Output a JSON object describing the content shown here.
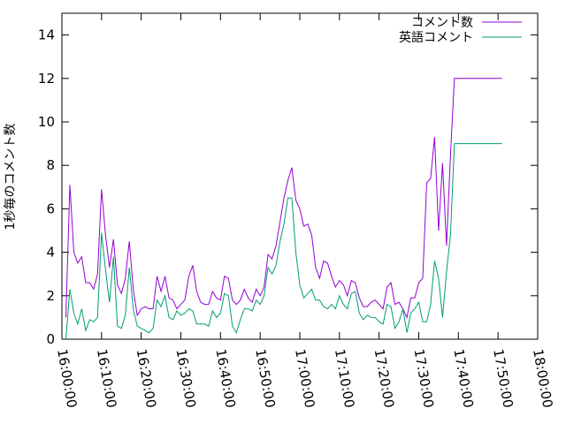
{
  "chart_data": {
    "type": "line",
    "title": "",
    "xlabel": "",
    "ylabel": "1秒毎のコメント数",
    "ylim": [
      0,
      15
    ],
    "yticks": [
      "0",
      "2",
      "4",
      "6",
      "8",
      "10",
      "12",
      "14"
    ],
    "ytick_values": [
      0,
      2,
      4,
      6,
      8,
      10,
      12,
      14
    ],
    "xlim": [
      "16:00:00",
      "18:00:00"
    ],
    "xticks": [
      "16:00:00",
      "16:10:00",
      "16:20:00",
      "16:30:00",
      "16:40:00",
      "16:50:00",
      "17:00:00",
      "17:10:00",
      "17:20:00",
      "17:30:00",
      "17:40:00",
      "17:50:00",
      "18:00:00"
    ],
    "legend_position": "top-right",
    "grid": false,
    "series": [
      {
        "name": "コメント数",
        "color": "#9400d3",
        "x": [
          "16:01:00",
          "16:02:00",
          "16:03:00",
          "16:04:00",
          "16:05:00",
          "16:06:00",
          "16:07:00",
          "16:08:00",
          "16:09:00",
          "16:10:00",
          "16:11:00",
          "16:12:00",
          "16:13:00",
          "16:14:00",
          "16:15:00",
          "16:16:00",
          "16:17:00",
          "16:18:00",
          "16:19:00",
          "16:20:00",
          "16:21:00",
          "16:22:00",
          "16:23:00",
          "16:24:00",
          "16:25:00",
          "16:26:00",
          "16:27:00",
          "16:28:00",
          "16:29:00",
          "16:30:00",
          "16:31:00",
          "16:32:00",
          "16:33:00",
          "16:34:00",
          "16:35:00",
          "16:36:00",
          "16:37:00",
          "16:38:00",
          "16:39:00",
          "16:40:00",
          "16:41:00",
          "16:42:00",
          "16:43:00",
          "16:44:00",
          "16:45:00",
          "16:46:00",
          "16:47:00",
          "16:48:00",
          "16:49:00",
          "16:50:00",
          "16:51:00",
          "16:52:00",
          "16:53:00",
          "16:54:00",
          "16:55:00",
          "16:56:00",
          "16:57:00",
          "16:58:00",
          "16:59:00",
          "17:00:00",
          "17:01:00",
          "17:02:00",
          "17:03:00",
          "17:04:00",
          "17:05:00",
          "17:06:00",
          "17:07:00",
          "17:08:00",
          "17:09:00",
          "17:10:00",
          "17:11:00",
          "17:12:00",
          "17:13:00",
          "17:14:00",
          "17:15:00",
          "17:16:00",
          "17:17:00",
          "17:18:00",
          "17:19:00",
          "17:20:00",
          "17:21:00",
          "17:22:00",
          "17:23:00",
          "17:24:00",
          "17:25:00",
          "17:26:00",
          "17:27:00",
          "17:28:00",
          "17:29:00",
          "17:30:00",
          "17:31:00",
          "17:32:00",
          "17:33:00",
          "17:34:00",
          "17:35:00",
          "17:36:00",
          "17:37:00",
          "17:38:00",
          "17:39:00",
          "17:40:00",
          "17:41:00",
          "17:42:00",
          "17:43:00",
          "17:44:00",
          "17:45:00",
          "17:46:00",
          "17:47:00",
          "17:48:00",
          "17:49:00",
          "17:50:00",
          "17:51:00"
        ],
        "values": [
          1.0,
          7.1,
          4.0,
          3.5,
          3.8,
          2.6,
          2.6,
          2.3,
          3.0,
          6.9,
          4.8,
          3.3,
          4.6,
          2.5,
          2.1,
          2.8,
          4.5,
          2.3,
          1.1,
          1.4,
          1.5,
          1.4,
          1.4,
          2.9,
          2.2,
          2.9,
          1.9,
          1.8,
          1.4,
          1.6,
          1.8,
          2.9,
          3.4,
          2.2,
          1.7,
          1.6,
          1.6,
          2.2,
          1.9,
          1.8,
          2.9,
          2.8,
          1.8,
          1.6,
          1.8,
          2.3,
          1.9,
          1.7,
          2.3,
          2.0,
          2.4,
          3.9,
          3.7,
          4.3,
          5.4,
          6.5,
          7.3,
          7.9,
          6.4,
          6.0,
          5.2,
          5.3,
          4.8,
          3.3,
          2.8,
          3.6,
          3.5,
          2.9,
          2.4,
          2.7,
          2.5,
          2.0,
          2.7,
          2.6,
          1.9,
          1.5,
          1.5,
          1.7,
          1.8,
          1.6,
          1.4,
          2.4,
          2.6,
          1.6,
          1.7,
          1.4,
          1.0,
          1.9,
          1.9,
          2.6,
          2.8,
          7.2,
          7.4,
          9.3,
          5.0,
          8.1,
          4.3,
          8.5,
          12.0,
          12.0,
          12.0,
          12.0,
          12.0,
          12.0,
          12.0,
          12.0,
          12.0,
          12.0,
          12.0,
          12.0,
          12.0
        ]
      },
      {
        "name": "英語コメント",
        "color": "#009e73",
        "x": [
          "16:01:00",
          "16:02:00",
          "16:03:00",
          "16:04:00",
          "16:05:00",
          "16:06:00",
          "16:07:00",
          "16:08:00",
          "16:09:00",
          "16:10:00",
          "16:11:00",
          "16:12:00",
          "16:13:00",
          "16:14:00",
          "16:15:00",
          "16:16:00",
          "16:17:00",
          "16:18:00",
          "16:19:00",
          "16:20:00",
          "16:21:00",
          "16:22:00",
          "16:23:00",
          "16:24:00",
          "16:25:00",
          "16:26:00",
          "16:27:00",
          "16:28:00",
          "16:29:00",
          "16:30:00",
          "16:31:00",
          "16:32:00",
          "16:33:00",
          "16:34:00",
          "16:35:00",
          "16:36:00",
          "16:37:00",
          "16:38:00",
          "16:39:00",
          "16:40:00",
          "16:41:00",
          "16:42:00",
          "16:43:00",
          "16:44:00",
          "16:45:00",
          "16:46:00",
          "16:47:00",
          "16:48:00",
          "16:49:00",
          "16:50:00",
          "16:51:00",
          "16:52:00",
          "16:53:00",
          "16:54:00",
          "16:55:00",
          "16:56:00",
          "16:57:00",
          "16:58:00",
          "16:59:00",
          "17:00:00",
          "17:01:00",
          "17:02:00",
          "17:03:00",
          "17:04:00",
          "17:05:00",
          "17:06:00",
          "17:07:00",
          "17:08:00",
          "17:09:00",
          "17:10:00",
          "17:11:00",
          "17:12:00",
          "17:13:00",
          "17:14:00",
          "17:15:00",
          "17:16:00",
          "17:17:00",
          "17:18:00",
          "17:19:00",
          "17:20:00",
          "17:21:00",
          "17:22:00",
          "17:23:00",
          "17:24:00",
          "17:25:00",
          "17:26:00",
          "17:27:00",
          "17:28:00",
          "17:29:00",
          "17:30:00",
          "17:31:00",
          "17:32:00",
          "17:33:00",
          "17:34:00",
          "17:35:00",
          "17:36:00",
          "17:37:00",
          "17:38:00",
          "17:39:00",
          "17:40:00",
          "17:41:00",
          "17:42:00",
          "17:43:00",
          "17:44:00",
          "17:45:00",
          "17:46:00",
          "17:47:00",
          "17:48:00",
          "17:49:00",
          "17:50:00",
          "17:51:00"
        ],
        "values": [
          0.0,
          2.3,
          1.2,
          0.7,
          1.4,
          0.4,
          0.9,
          0.8,
          1.0,
          4.9,
          3.2,
          1.7,
          3.8,
          0.6,
          0.5,
          1.1,
          3.3,
          1.4,
          0.6,
          0.5,
          0.4,
          0.3,
          0.5,
          1.8,
          1.5,
          2.0,
          1.0,
          0.9,
          1.3,
          1.1,
          1.2,
          1.4,
          1.3,
          0.7,
          0.7,
          0.7,
          0.6,
          1.3,
          1.0,
          1.2,
          2.1,
          2.0,
          0.6,
          0.3,
          0.9,
          1.4,
          1.4,
          1.3,
          1.8,
          1.6,
          2.0,
          3.3,
          3.0,
          3.4,
          4.5,
          5.3,
          6.5,
          6.5,
          4.0,
          2.5,
          1.9,
          2.1,
          2.3,
          1.8,
          1.8,
          1.5,
          1.4,
          1.6,
          1.4,
          2.0,
          1.6,
          1.4,
          2.1,
          2.2,
          1.2,
          0.9,
          1.1,
          1.0,
          1.0,
          0.8,
          0.7,
          1.6,
          1.5,
          0.5,
          0.8,
          1.4,
          0.3,
          1.2,
          1.4,
          1.7,
          0.8,
          0.8,
          1.6,
          3.6,
          2.8,
          1.0,
          3.1,
          4.8,
          9.0,
          9.0,
          9.0,
          9.0,
          9.0,
          9.0,
          9.0,
          9.0,
          9.0,
          9.0,
          9.0,
          9.0,
          9.0
        ]
      }
    ]
  }
}
